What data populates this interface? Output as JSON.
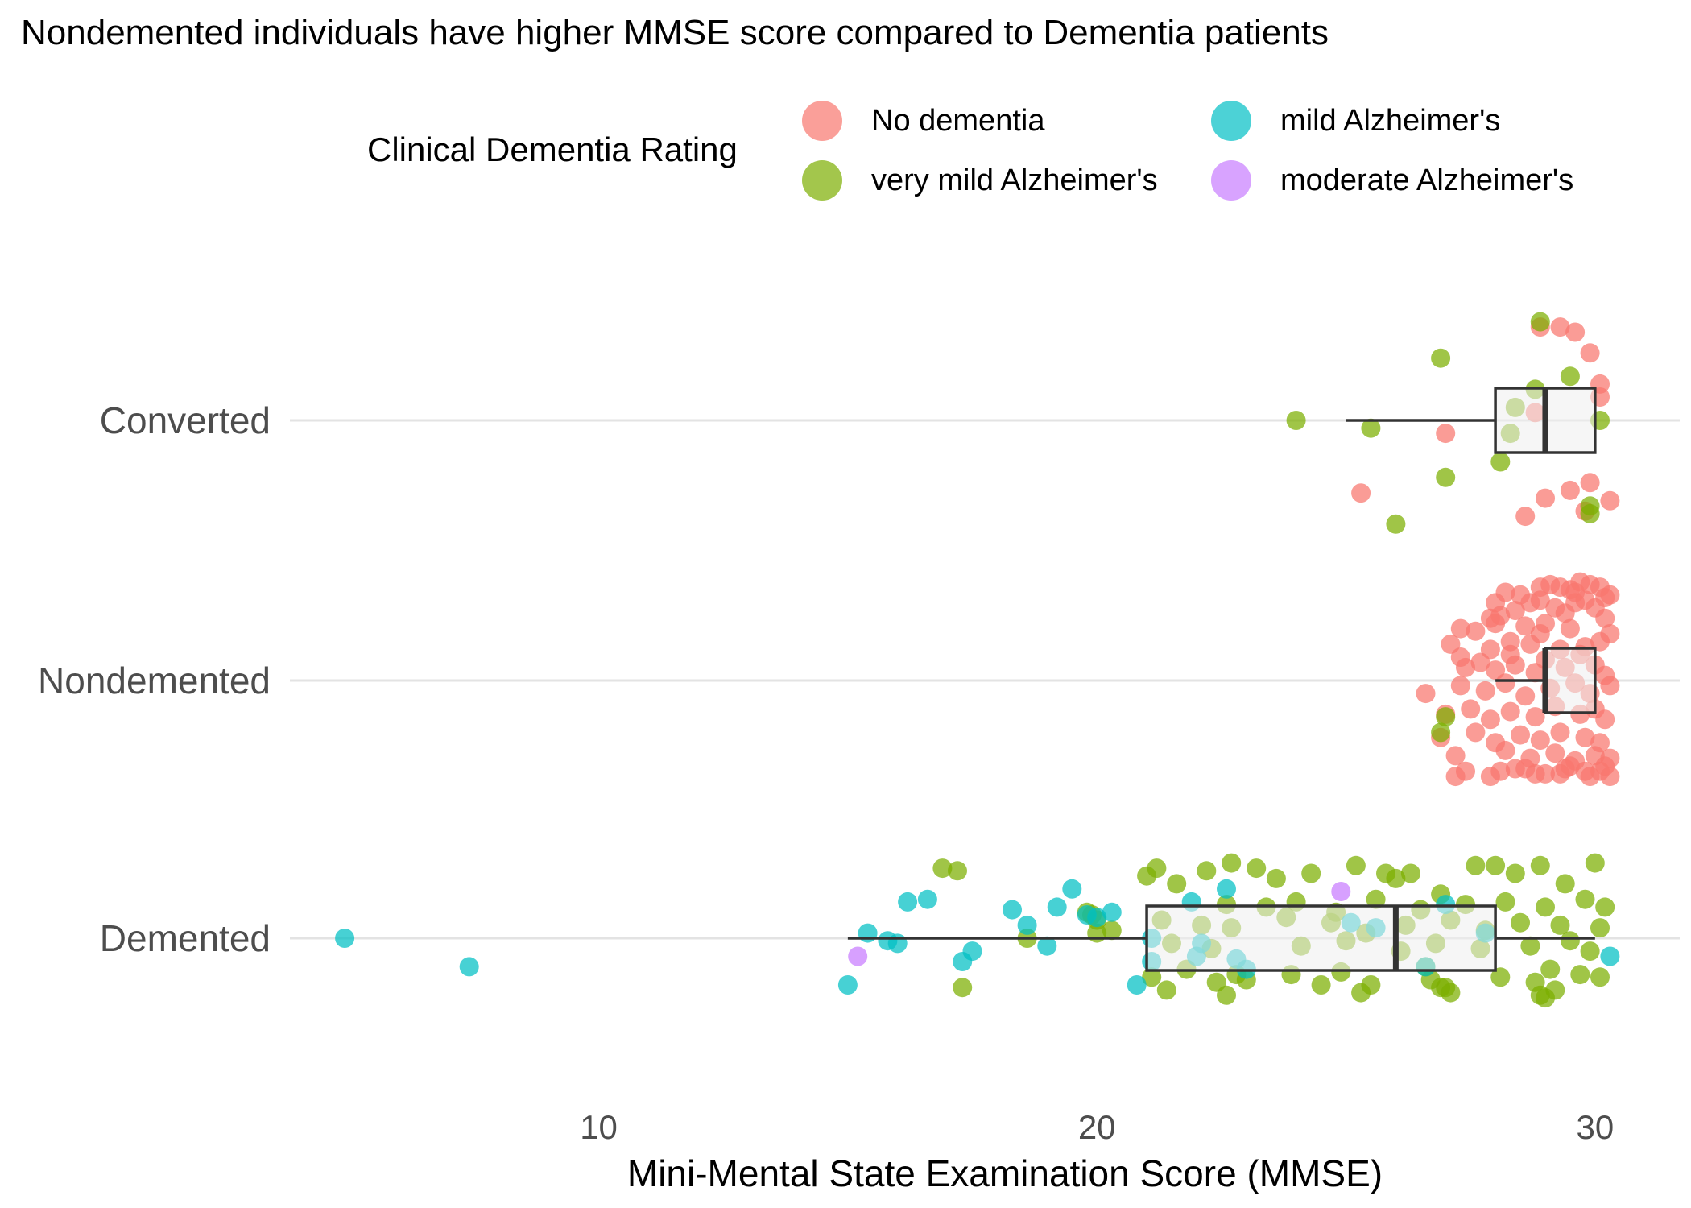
{
  "chart_data": {
    "type": "scatter",
    "title": "Nondemented individuals have higher MMSE score compared to Dementia patients",
    "xlabel": "Mini-Mental State Examination Score (MMSE)",
    "ylabel": "",
    "xlim": [
      3.8,
      31.7
    ],
    "x_ticks": [
      10,
      20,
      30
    ],
    "categories": [
      "Demented",
      "Nondemented",
      "Converted"
    ],
    "grid": "horizontal major lines only",
    "legend": {
      "title": "Clinical Dementia Rating",
      "position": "top",
      "entries": [
        {
          "name": "No dementia",
          "color": "#F8766D"
        },
        {
          "name": "very mild Alzheimer's",
          "color": "#7CAE00"
        },
        {
          "name": "mild Alzheimer's",
          "color": "#00BFC4"
        },
        {
          "name": "moderate Alzheimer's",
          "color": "#C77CFF"
        }
      ]
    },
    "boxplots": [
      {
        "group": "Converted",
        "min": 25,
        "q1": 28,
        "median": 29,
        "q3": 30,
        "max": 30
      },
      {
        "group": "Nondemented",
        "min": 28,
        "q1": 29,
        "median": 29,
        "q3": 30,
        "max": 30
      },
      {
        "group": "Demented",
        "min": 15,
        "q1": 21,
        "median": 26,
        "q3": 28,
        "max": 30
      }
    ],
    "series": [
      {
        "name": "No dementia",
        "group": "Converted",
        "x": [
          28.9,
          29.3,
          29.6,
          29.9,
          30.1,
          27.0,
          30.3,
          28.6,
          29.8,
          29.5,
          28.8,
          30.1,
          25.3,
          29.0,
          29.9
        ],
        "jitter": [
          0.36,
          0.36,
          0.34,
          0.26,
          0.09,
          -0.05,
          -0.31,
          -0.37,
          -0.35,
          -0.27,
          0.03,
          0.14,
          -0.28,
          -0.3,
          -0.24
        ]
      },
      {
        "name": "very mild Alzheimer's",
        "group": "Converted",
        "x": [
          28.9,
          26.9,
          29.5,
          28.8,
          28.4,
          30.1,
          28.3,
          29.9,
          24.0,
          25.5,
          28.1,
          27.0,
          29.9,
          26.0
        ],
        "jitter": [
          0.38,
          0.24,
          0.17,
          0.12,
          0.05,
          0.0,
          -0.05,
          -0.33,
          0.0,
          -0.03,
          -0.16,
          -0.22,
          -0.36,
          -0.4
        ]
      },
      {
        "name": "No dementia",
        "group": "Nondemented",
        "x": [
          28.0,
          28.2,
          28.5,
          28.9,
          29.1,
          29.3,
          29.5,
          29.7,
          29.9,
          30.1,
          30.3,
          28.1,
          28.4,
          28.7,
          28.9,
          29.2,
          29.4,
          29.6,
          29.8,
          30.0,
          30.2,
          27.3,
          27.6,
          27.9,
          28.0,
          28.3,
          28.6,
          29.0,
          29.5,
          30.2,
          27.1,
          27.9,
          28.3,
          28.7,
          29.3,
          29.8,
          30.1,
          30.3,
          27.4,
          27.7,
          28.0,
          28.4,
          28.8,
          29.0,
          29.4,
          29.7,
          30.0,
          30.2,
          26.6,
          27.3,
          27.8,
          28.2,
          28.6,
          29.1,
          29.6,
          29.9,
          30.3,
          27.0,
          27.5,
          27.9,
          28.3,
          28.8,
          29.2,
          29.7,
          30.0,
          30.2,
          26.9,
          27.6,
          28.0,
          28.5,
          28.9,
          29.3,
          29.8,
          30.1,
          27.2,
          28.2,
          28.7,
          29.2,
          29.6,
          30.0,
          30.3,
          28.1,
          28.8,
          29.4,
          29.9,
          30.2,
          27.4,
          27.9,
          28.4,
          29.0,
          29.5,
          30.1,
          27.2,
          28.6,
          29.3,
          29.8,
          30.3,
          27.3,
          28.9,
          29.6
        ],
        "jitter": [
          0.3,
          0.34,
          0.33,
          0.36,
          0.37,
          0.36,
          0.35,
          0.38,
          0.37,
          0.36,
          0.33,
          0.25,
          0.27,
          0.3,
          0.31,
          0.28,
          0.26,
          0.3,
          0.31,
          0.28,
          0.32,
          0.2,
          0.19,
          0.24,
          0.22,
          0.15,
          0.21,
          0.22,
          0.2,
          0.24,
          0.14,
          0.12,
          0.1,
          0.14,
          0.12,
          0.13,
          0.15,
          0.18,
          0.05,
          0.07,
          0.04,
          0.06,
          0.03,
          0.08,
          0.05,
          0.1,
          0.06,
          0.02,
          -0.05,
          -0.02,
          -0.04,
          -0.01,
          -0.06,
          -0.03,
          -0.01,
          -0.05,
          -0.02,
          -0.13,
          -0.11,
          -0.15,
          -0.12,
          -0.14,
          -0.1,
          -0.13,
          -0.11,
          -0.15,
          -0.22,
          -0.2,
          -0.24,
          -0.21,
          -0.23,
          -0.2,
          -0.22,
          -0.24,
          -0.29,
          -0.27,
          -0.3,
          -0.28,
          -0.31,
          -0.29,
          -0.3,
          -0.35,
          -0.36,
          -0.34,
          -0.37,
          -0.33,
          -0.35,
          -0.37,
          -0.34,
          -0.36,
          -0.33,
          -0.35,
          -0.37,
          -0.34,
          -0.36,
          -0.35,
          -0.37,
          0.09,
          0.18,
          0.34
        ],
        "note_colors": "No dementia"
      },
      {
        "name": "very mild Alzheimer's",
        "group": "Nondemented",
        "x": [
          27.0,
          26.9
        ],
        "jitter": [
          -0.14,
          -0.2
        ]
      },
      {
        "name": "very mild Alzheimer's",
        "group": "Demented",
        "x": [
          16.9,
          17.2,
          19.8,
          20.0,
          20.3,
          18.6,
          21.0,
          21.2,
          21.6,
          22.2,
          22.7,
          23.2,
          23.6,
          24.3,
          25.2,
          25.8,
          26.0,
          26.3,
          26.9,
          27.6,
          28.0,
          28.4,
          28.9,
          29.4,
          30.0,
          22.6,
          23.4,
          24.0,
          24.8,
          25.6,
          26.5,
          27.4,
          28.2,
          29.0,
          29.8,
          30.2,
          21.3,
          22.1,
          22.7,
          23.8,
          24.7,
          25.4,
          26.2,
          27.1,
          27.8,
          28.5,
          29.3,
          30.1,
          21.5,
          22.3,
          24.1,
          25.0,
          26.1,
          26.8,
          27.7,
          28.7,
          29.5,
          29.9,
          21.8,
          22.8,
          24.9,
          26.6,
          28.1,
          29.1,
          29.7,
          21.1,
          22.4,
          23.9,
          25.5,
          26.7,
          28.8,
          30.1,
          21.4,
          22.6,
          25.3,
          27.0,
          28.9,
          29.2,
          20.0,
          19.9,
          26.9,
          27.1,
          23.0,
          24.5,
          17.3,
          29.0
        ],
        "jitter": [
          0.27,
          0.26,
          0.1,
          0.02,
          0.03,
          0.0,
          0.24,
          0.27,
          0.21,
          0.26,
          0.29,
          0.27,
          0.23,
          0.25,
          0.28,
          0.25,
          0.23,
          0.25,
          0.17,
          0.28,
          0.28,
          0.25,
          0.28,
          0.21,
          0.29,
          0.13,
          0.12,
          0.14,
          0.1,
          0.15,
          0.11,
          0.13,
          0.14,
          0.12,
          0.15,
          0.12,
          0.07,
          0.05,
          0.04,
          0.08,
          0.06,
          0.02,
          0.05,
          0.07,
          0.03,
          0.06,
          0.05,
          0.04,
          -0.02,
          -0.04,
          -0.03,
          -0.01,
          -0.05,
          -0.02,
          -0.04,
          -0.03,
          -0.01,
          -0.05,
          -0.12,
          -0.14,
          -0.13,
          -0.11,
          -0.15,
          -0.12,
          -0.14,
          -0.15,
          -0.17,
          -0.14,
          -0.18,
          -0.16,
          -0.17,
          -0.15,
          -0.2,
          -0.22,
          -0.21,
          -0.19,
          -0.22,
          -0.2,
          0.07,
          0.09,
          -0.19,
          -0.21,
          -0.16,
          -0.18,
          -0.19,
          -0.23
        ]
      },
      {
        "name": "mild Alzheimer's",
        "group": "Demented",
        "x": [
          4.9,
          7.4,
          16.2,
          16.6,
          18.3,
          19.2,
          19.5,
          20.3,
          21.9,
          22.6,
          15.4,
          15.8,
          16.0,
          17.5,
          18.6,
          19.0,
          19.8,
          20.0,
          21.1,
          21.1,
          20.8,
          15.0,
          17.3,
          22.0,
          22.8,
          23.0,
          25.1,
          26.6,
          27.0,
          27.8,
          30.3,
          22.1,
          25.6
        ],
        "jitter": [
          0.0,
          -0.11,
          0.14,
          0.15,
          0.11,
          0.12,
          0.19,
          0.1,
          0.14,
          0.19,
          0.02,
          -0.01,
          -0.02,
          -0.05,
          0.05,
          -0.03,
          0.09,
          0.08,
          0.0,
          -0.09,
          -0.18,
          -0.18,
          -0.09,
          -0.07,
          -0.08,
          -0.12,
          0.06,
          -0.11,
          0.13,
          0.02,
          -0.07,
          -0.02,
          0.04
        ]
      },
      {
        "name": "moderate Alzheimer's",
        "group": "Demented",
        "x": [
          15.2,
          24.9
        ],
        "jitter": [
          -0.07,
          0.18
        ]
      }
    ]
  }
}
